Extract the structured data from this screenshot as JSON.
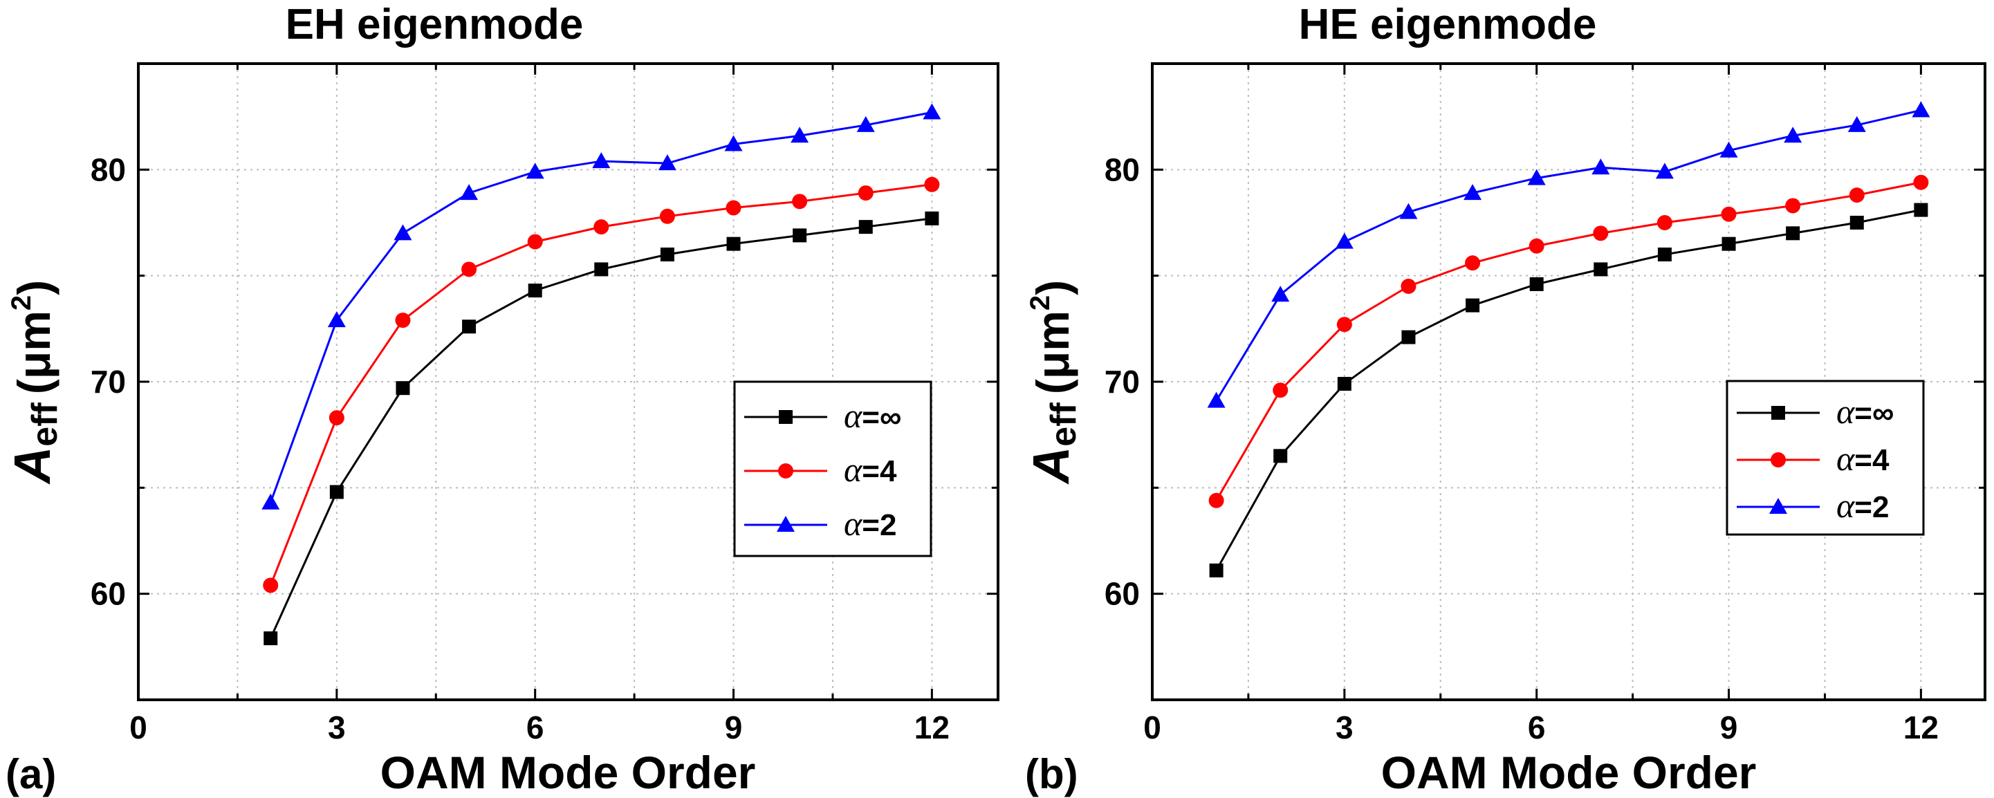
{
  "chart_data": [
    {
      "type": "line",
      "panel_label": "(a)",
      "title": "EH eigenmode",
      "xlabel": "OAM Mode Order",
      "ylabel": {
        "main": "A",
        "sub": "eff",
        "units": "(μm",
        "sup": "2",
        "close": ")"
      },
      "xlim": [
        0,
        13
      ],
      "ylim": [
        55,
        85
      ],
      "xticks": [
        0,
        3,
        6,
        9,
        12
      ],
      "yticks": [
        60,
        70,
        80
      ],
      "grid": true,
      "legend_position": "center-right",
      "x": [
        2,
        3,
        4,
        5,
        6,
        7,
        8,
        9,
        10,
        11,
        12
      ],
      "series": [
        {
          "name": "α=∞",
          "greek": "α",
          "rest": "=∞",
          "marker": "square",
          "color": "#000000",
          "values": [
            57.9,
            64.8,
            69.7,
            72.6,
            74.3,
            75.3,
            76.0,
            76.5,
            76.9,
            77.3,
            77.7
          ]
        },
        {
          "name": "α=4",
          "greek": "α",
          "rest": "=4",
          "marker": "circle",
          "color": "#ff0000",
          "values": [
            60.4,
            68.3,
            72.9,
            75.3,
            76.6,
            77.3,
            77.8,
            78.2,
            78.5,
            78.9,
            79.3
          ]
        },
        {
          "name": "α=2",
          "greek": "α",
          "rest": "=2",
          "marker": "triangle",
          "color": "#0000ff",
          "values": [
            64.3,
            72.9,
            77.0,
            78.9,
            79.9,
            80.4,
            80.3,
            81.2,
            81.6,
            82.1,
            82.7
          ]
        }
      ]
    },
    {
      "type": "line",
      "panel_label": "(b)",
      "title": "HE eigenmode",
      "xlabel": "OAM Mode Order",
      "ylabel": {
        "main": "A",
        "sub": "eff",
        "units": "(μm",
        "sup": "2",
        "close": ")"
      },
      "xlim": [
        0,
        13
      ],
      "ylim": [
        55,
        85
      ],
      "xticks": [
        0,
        3,
        6,
        9,
        12
      ],
      "yticks": [
        60,
        70,
        80
      ],
      "grid": true,
      "legend_position": "center-right",
      "x": [
        1,
        2,
        3,
        4,
        5,
        6,
        7,
        8,
        9,
        10,
        11,
        12
      ],
      "series": [
        {
          "name": "α=∞",
          "greek": "α",
          "rest": "=∞",
          "marker": "square",
          "color": "#000000",
          "values": [
            61.1,
            66.5,
            69.9,
            72.1,
            73.6,
            74.6,
            75.3,
            76.0,
            76.5,
            77.0,
            77.5,
            78.1
          ]
        },
        {
          "name": "α=4",
          "greek": "α",
          "rest": "=4",
          "marker": "circle",
          "color": "#ff0000",
          "values": [
            64.4,
            69.6,
            72.7,
            74.5,
            75.6,
            76.4,
            77.0,
            77.5,
            77.9,
            78.3,
            78.8,
            79.4
          ]
        },
        {
          "name": "α=2",
          "greek": "α",
          "rest": "=2",
          "marker": "triangle",
          "color": "#0000ff",
          "values": [
            69.1,
            74.1,
            76.6,
            78.0,
            78.9,
            79.6,
            80.1,
            79.9,
            80.9,
            81.6,
            82.1,
            82.8
          ]
        }
      ]
    }
  ]
}
